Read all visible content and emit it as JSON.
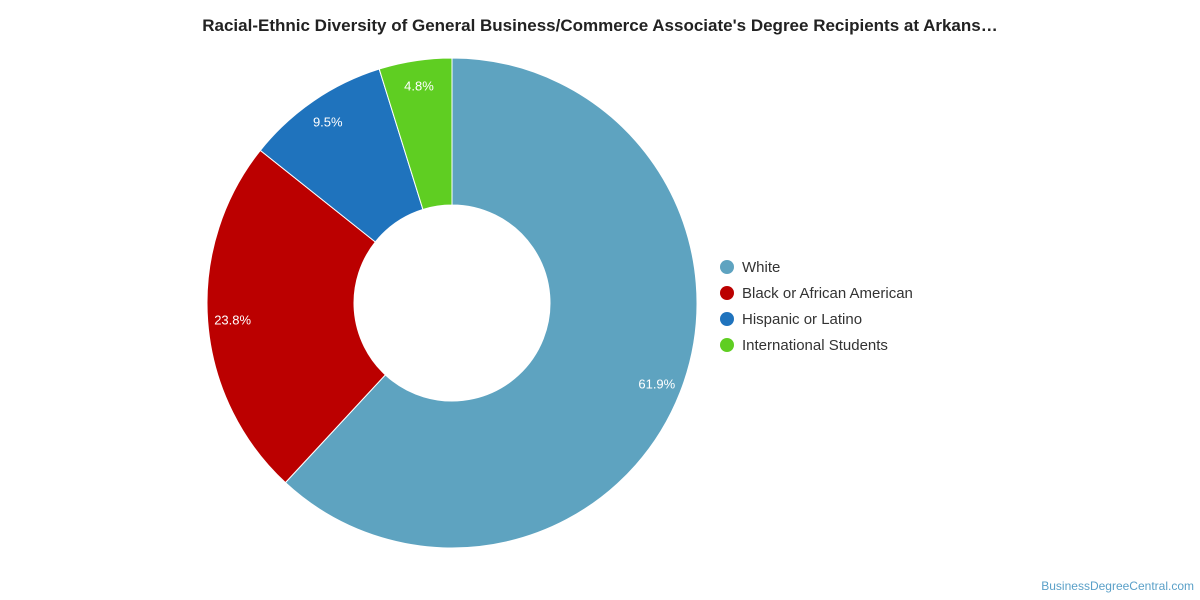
{
  "chart_data": {
    "type": "pie",
    "variant": "donut",
    "title": "Racial-Ethnic Diversity of General Business/Commerce Associate's Degree Recipients at Arkans…",
    "legend_position": "right",
    "series": [
      {
        "label": "White",
        "value": 61.9,
        "display": "61.9%",
        "color": "#5ea3c0"
      },
      {
        "label": "Black or African American",
        "value": 23.8,
        "display": "23.8%",
        "color": "#bb0000"
      },
      {
        "label": "Hispanic or Latino",
        "value": 9.5,
        "display": "9.5%",
        "color": "#1f73bd"
      },
      {
        "label": "International Students",
        "value": 4.8,
        "display": "4.8%",
        "color": "#5fce22"
      }
    ]
  },
  "watermark": "BusinessDegreeCentral.com"
}
